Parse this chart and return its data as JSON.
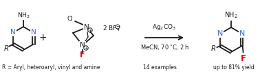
{
  "bg_color": "#ffffff",
  "blue_color": "#4169CD",
  "red_color": "#EE0000",
  "black_color": "#1a1a1a",
  "figsize": [
    3.78,
    1.08
  ],
  "dpi": 100,
  "bottom_text_left": "R = Aryl, heteroaryl, vinyl and amine",
  "bottom_text_mid": "14 examples",
  "bottom_text_right": "up to 81% yield",
  "arrow_label_top": "Ag₂CO₃",
  "arrow_label_bot": "MeCN, 70 °C, 2 h"
}
